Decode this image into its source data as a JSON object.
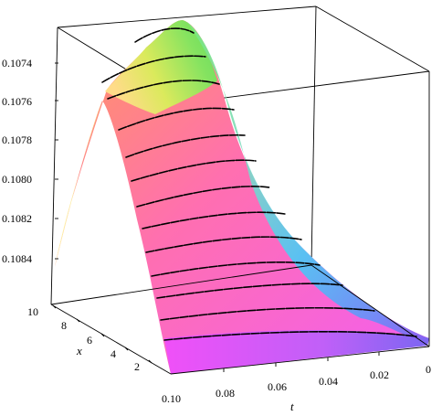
{
  "chart_data": {
    "type": "surface3d",
    "title": "",
    "xlabel": "t",
    "ylabel": "x",
    "zlabel": "",
    "t_ticks": [
      "0.10",
      "0.08",
      "0.06",
      "0.04",
      "0.02",
      "0"
    ],
    "x_ticks": [
      "2",
      "4",
      "6",
      "8",
      "10"
    ],
    "z_ticks": [
      "0.1074",
      "0.1076",
      "0.1078",
      "0.1080",
      "0.1082",
      "0.1084"
    ],
    "t_range": [
      0,
      0.1
    ],
    "x_range": [
      0,
      10
    ],
    "z_range": [
      0.10725,
      0.10855
    ],
    "z_axis_reversed": true,
    "surface_samples": {
      "x_at_t_0.10": [
        0,
        2,
        4,
        6,
        8,
        10
      ],
      "z_at_t_0.10": [
        0.10855,
        0.1081,
        0.10775,
        0.1076,
        0.1077,
        0.1084
      ],
      "x_at_t_0": [
        0,
        2,
        4,
        6,
        8,
        10
      ],
      "z_at_t_0": [
        0.10855,
        0.10852,
        0.1085,
        0.1085,
        0.10852,
        0.10855
      ],
      "peak": {
        "t": 0.1,
        "x": 7.0,
        "z": 0.10728
      }
    },
    "contour_count": 13,
    "colormap": "rainbow (magenta-pink-orange-yellow-green-cyan-blue)",
    "grid": false,
    "legend": "none"
  }
}
